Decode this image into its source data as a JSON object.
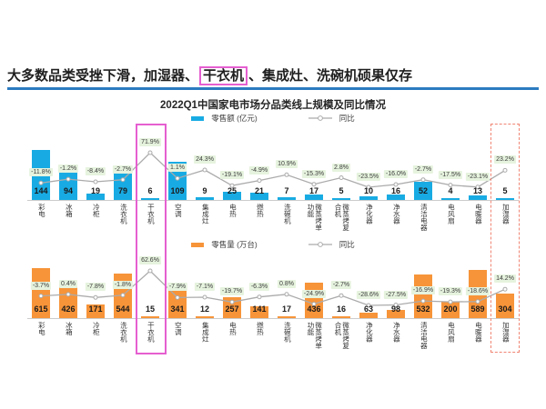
{
  "headline": {
    "pre": "大多数品类受挫下滑，加湿器、",
    "highlight": "干衣机",
    "post": "、集成灶、洗碗机硕果仅存"
  },
  "chart_title": "2022Q1中国家电市场分品类线上规模及同比情况",
  "colors": {
    "headline_rule": "#2b7bc0",
    "bar_blue": "#18abe3",
    "bar_orange": "#f79439",
    "line_gray": "#ababab",
    "badge_green": "#e6f3de",
    "highlight_magenta": "#e55fd0",
    "highlight_red_dashed": "#f08573"
  },
  "chart_data": [
    {
      "type": "bar",
      "name": "retail-value",
      "bar_legend": "零售额 (亿元)",
      "line_legend": "同比",
      "categories": [
        "彩电",
        "冰箱",
        "冷柜",
        "洗衣机",
        "干衣机",
        "空调",
        "集成灶",
        "电热",
        "燃热",
        "洗碗机",
        "微蒸烤单功能",
        "微蒸烤复合机",
        "净化器",
        "净水器",
        "清洁电器",
        "电风扇",
        "电暖器",
        "加湿器"
      ],
      "values": [
        144,
        94,
        19,
        79,
        6,
        109,
        9,
        25,
        21,
        7,
        17,
        5,
        10,
        16,
        52,
        4,
        13,
        5
      ],
      "yoy_percent": [
        -11.8,
        -1.2,
        -8.4,
        -2.7,
        71.9,
        1.1,
        24.3,
        -19.1,
        -4.9,
        10.9,
        -15.3,
        2.8,
        -23.5,
        -16.0,
        -2.7,
        -17.5,
        -23.1,
        23.2
      ],
      "yoy_labels": [
        "-11.8%",
        "-1.2%",
        "-8.4%",
        "-2.7%",
        "71.9%",
        "1.1%",
        "24.3%",
        "-19.1%",
        "-4.9%",
        "10.9%",
        "-15.3%",
        "2.8%",
        "-23.5%",
        "-16.0%",
        "-2.7%",
        "-17.5%",
        "-23.1%",
        "23.2%"
      ],
      "bar_color": "#18abe3",
      "grid": false,
      "legend_position": "top-center"
    },
    {
      "type": "bar",
      "name": "retail-volume",
      "bar_legend": "零售量 (万台)",
      "line_legend": "同比",
      "categories": [
        "彩电",
        "冰箱",
        "冷柜",
        "洗衣机",
        "干衣机",
        "空调",
        "集成灶",
        "电热",
        "燃热",
        "洗碗机",
        "微蒸烤单功能",
        "微蒸烤复合机",
        "净化器",
        "净水器",
        "清洁电器",
        "电风扇",
        "电暖器",
        "加湿器"
      ],
      "values": [
        615,
        426,
        171,
        544,
        15,
        341,
        12,
        257,
        141,
        17,
        436,
        16,
        63,
        98,
        532,
        200,
        589,
        304
      ],
      "yoy_percent": [
        -3.7,
        0.4,
        -7.8,
        -1.8,
        62.6,
        -7.9,
        -7.1,
        -19.7,
        -6.3,
        0.8,
        -24.9,
        -2.7,
        -28.6,
        -27.5,
        -16.9,
        -19.3,
        -18.6,
        14.2
      ],
      "yoy_labels": [
        "-3.7%",
        "0.4%",
        "-7.8%",
        "-1.8%",
        "62.6%",
        "-7.9%",
        "-7.1%",
        "-19.7%",
        "-6.3%",
        "0.8%",
        "-24.9%",
        "-2.7%",
        "-28.6%",
        "-27.5%",
        "-16.9%",
        "-19.3%",
        "-18.6%",
        "14.2%"
      ],
      "bar_color": "#f79439",
      "grid": false,
      "legend_position": "top-center"
    }
  ],
  "highlights": [
    {
      "category": "干衣机",
      "index": 4,
      "style": "solid",
      "color": "#e55fd0"
    },
    {
      "category": "加湿器",
      "index": 17,
      "style": "dashed",
      "color": "#f08573"
    }
  ]
}
